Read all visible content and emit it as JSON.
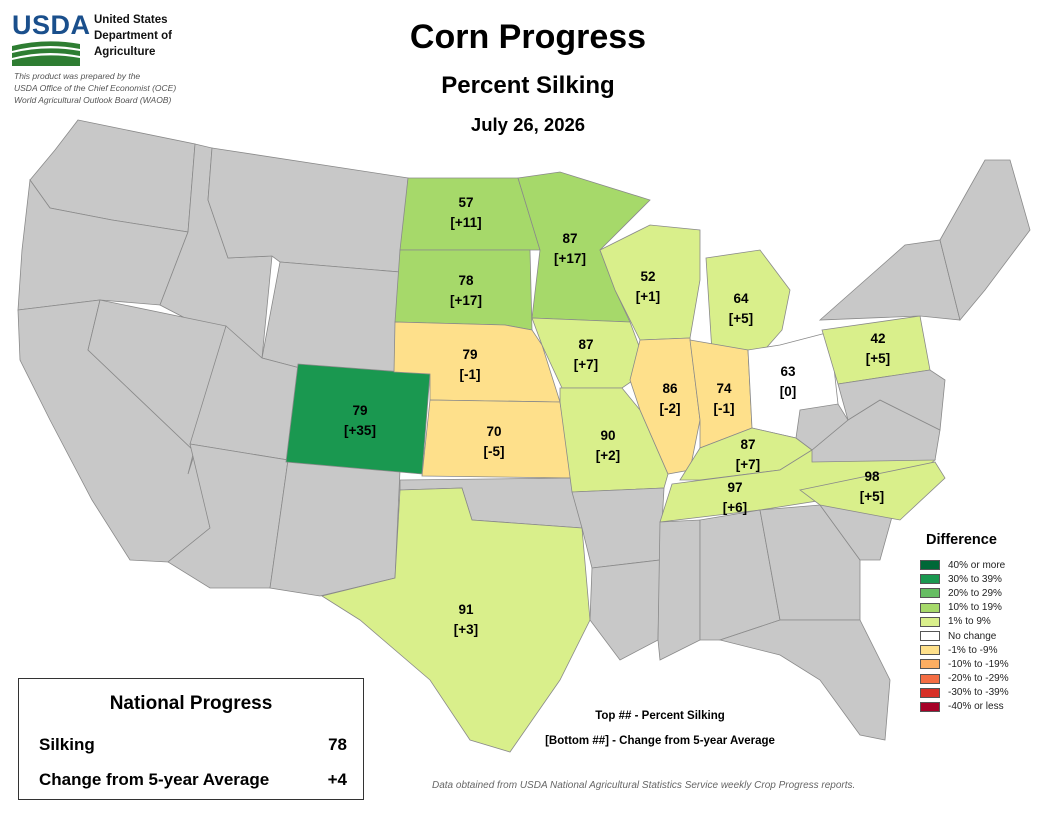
{
  "header": {
    "logo_text": "USDA",
    "agency_lines": [
      "United States",
      "Department of",
      "Agriculture"
    ],
    "credit_lines": [
      "This product was prepared by the",
      "USDA Office of the Chief Economist (OCE)",
      "World Agricultural Outlook Board (WAOB)"
    ]
  },
  "title": "Corn Progress",
  "subtitle": "Percent Silking",
  "date": "July 26, 2026",
  "colors": {
    "no_data": "#c8c8c8",
    "border": "#8a8a8a",
    "accent_blue": "#1a4f8c",
    "accent_green": "#2e7d32"
  },
  "legend": {
    "title": "Difference",
    "items": [
      {
        "label": "40% or more",
        "color": "#006837"
      },
      {
        "label": "30% to 39%",
        "color": "#1a9850"
      },
      {
        "label": "20% to 29%",
        "color": "#66bd63"
      },
      {
        "label": "10% to 19%",
        "color": "#a6d96a"
      },
      {
        "label": "1% to 9%",
        "color": "#d9ef8b"
      },
      {
        "label": "No change",
        "color": "#ffffff"
      },
      {
        "label": "-1% to -9%",
        "color": "#fee08b"
      },
      {
        "label": "-10% to -19%",
        "color": "#fdae61"
      },
      {
        "label": "-20% to -29%",
        "color": "#f46d43"
      },
      {
        "label": "-30% to -39%",
        "color": "#d73027"
      },
      {
        "label": "-40% or less",
        "color": "#a50026"
      }
    ]
  },
  "states": [
    {
      "state": "ND",
      "silking": "57",
      "change": "[+11]",
      "color": "#a6d96a"
    },
    {
      "state": "SD",
      "silking": "78",
      "change": "[+17]",
      "color": "#a6d96a"
    },
    {
      "state": "MN",
      "silking": "87",
      "change": "[+17]",
      "color": "#a6d96a"
    },
    {
      "state": "NE",
      "silking": "79",
      "change": "[-1]",
      "color": "#fee08b"
    },
    {
      "state": "KS",
      "silking": "70",
      "change": "[-5]",
      "color": "#fee08b"
    },
    {
      "state": "CO",
      "silking": "79",
      "change": "[+35]",
      "color": "#1a9850"
    },
    {
      "state": "IA",
      "silking": "87",
      "change": "[+7]",
      "color": "#d9ef8b"
    },
    {
      "state": "MO",
      "silking": "90",
      "change": "[+2]",
      "color": "#d9ef8b"
    },
    {
      "state": "WI",
      "silking": "52",
      "change": "[+1]",
      "color": "#d9ef8b"
    },
    {
      "state": "MI",
      "silking": "64",
      "change": "[+5]",
      "color": "#d9ef8b"
    },
    {
      "state": "IL",
      "silking": "86",
      "change": "[-2]",
      "color": "#fee08b"
    },
    {
      "state": "IN",
      "silking": "74",
      "change": "[-1]",
      "color": "#fee08b"
    },
    {
      "state": "OH",
      "silking": "63",
      "change": "[0]",
      "color": "#ffffff"
    },
    {
      "state": "KY",
      "silking": "87",
      "change": "[+7]",
      "color": "#d9ef8b"
    },
    {
      "state": "TN",
      "silking": "97",
      "change": "[+6]",
      "color": "#d9ef8b"
    },
    {
      "state": "NC",
      "silking": "98",
      "change": "[+5]",
      "color": "#d9ef8b"
    },
    {
      "state": "PA",
      "silking": "42",
      "change": "[+5]",
      "color": "#d9ef8b"
    },
    {
      "state": "TX",
      "silking": "91",
      "change": "[+3]",
      "color": "#d9ef8b"
    }
  ],
  "notes": {
    "top": "Top ## - Percent Silking",
    "bottom": "[Bottom ##] - Change from 5-year Average"
  },
  "source": "Data obtained from USDA National Agricultural Statistics Service weekly Crop Progress reports.",
  "national": {
    "title": "National Progress",
    "rows": [
      {
        "label": "Silking",
        "value": "78"
      },
      {
        "label": "Change from 5-year Average",
        "value": "+4"
      }
    ]
  }
}
